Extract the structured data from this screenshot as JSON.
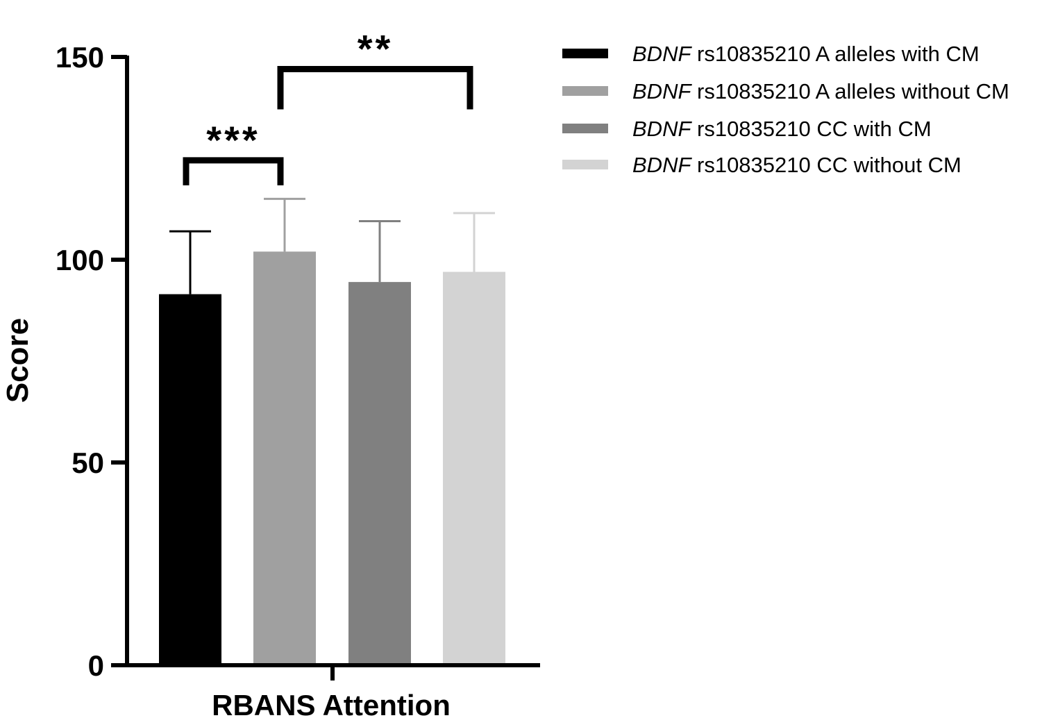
{
  "chart_data": {
    "type": "bar",
    "categories": [
      "RBANS Attention"
    ],
    "ylabel": "Score",
    "ylim": [
      0,
      150
    ],
    "yticks": [
      0,
      50,
      100,
      150
    ],
    "grid": false,
    "legend_position": "top-right",
    "series": [
      {
        "name_gene": "BDNF",
        "name_rest": " rs10835210 A alleles  with CM",
        "value": 91.5,
        "error": 15.5,
        "color": "#000000"
      },
      {
        "name_gene": "BDNF",
        "name_rest": " rs10835210 A alleles  without CM",
        "value": 102,
        "error": 13,
        "color": "#a0a0a0"
      },
      {
        "name_gene": "BDNF",
        "name_rest": " rs10835210 CC  with CM",
        "value": 94.5,
        "error": 15,
        "color": "#808080"
      },
      {
        "name_gene": "BDNF",
        "name_rest": " rs10835210 CC  without CM",
        "value": 97,
        "error": 14.5,
        "color": "#d3d3d3"
      }
    ],
    "significance": [
      {
        "from": 0,
        "to": 1,
        "label": "***",
        "level": 124.5
      },
      {
        "from": 1,
        "to": 3,
        "label": "**",
        "level": 147
      }
    ]
  }
}
